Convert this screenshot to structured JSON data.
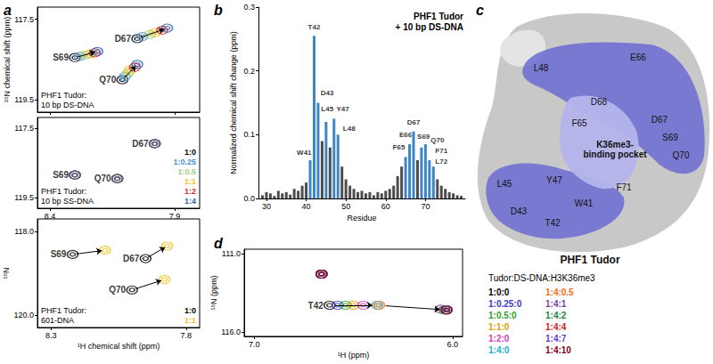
{
  "panel_labels": [
    "a",
    "b",
    "c",
    "d"
  ],
  "chart_data": [
    {
      "type": "scatter",
      "title": "PHF1 Tudor:\n10 bp DS-DNA",
      "xlim": [
        8.45,
        7.8
      ],
      "xticks": [
        8.4,
        7.9
      ],
      "ylim": [
        119.8,
        117.2
      ],
      "yticks": [
        117.5,
        119.5
      ],
      "y_label": "¹⁵N chemical shift (ppm)",
      "tick_labels": "y",
      "peaks": [
        "S69",
        "D67",
        "Q70"
      ],
      "series": [
        {
          "color": "#000000",
          "x": [
            8.3,
            8.05,
            8.11
          ],
          "y": [
            118.45,
            117.98,
            119.0
          ]
        },
        {
          "color": "#4a90d9",
          "x": [
            8.28,
            8.03,
            8.1
          ],
          "y": [
            118.42,
            117.93,
            118.92
          ]
        },
        {
          "color": "#9bd07f",
          "x": [
            8.26,
            8.0,
            8.09
          ],
          "y": [
            118.39,
            117.88,
            118.85
          ]
        },
        {
          "color": "#f2c21b",
          "x": [
            8.24,
            7.98,
            8.08
          ],
          "y": [
            118.36,
            117.83,
            118.77
          ]
        },
        {
          "color": "#d62828",
          "x": [
            8.22,
            7.95,
            8.06
          ],
          "y": [
            118.33,
            117.77,
            118.69
          ]
        },
        {
          "color": "#2b5fb4",
          "x": [
            8.21,
            7.93,
            8.05
          ],
          "y": [
            118.3,
            117.72,
            118.62
          ]
        }
      ]
    },
    {
      "type": "scatter",
      "title": "PHF1 Tudor:\n10 bp SS-DNA",
      "xlim": [
        8.45,
        7.8
      ],
      "xticks": [
        8.4,
        7.9
      ],
      "ylim": [
        119.8,
        117.2
      ],
      "yticks": [
        117.5,
        119.5
      ],
      "legend": "lower right",
      "peaks": [
        "S69",
        "D67",
        "Q70"
      ],
      "series": [
        {
          "name": "1:0",
          "color": "#000000",
          "x": [
            8.3,
            7.98,
            8.13
          ],
          "y": [
            118.85,
            117.95,
            118.95
          ]
        },
        {
          "name": "1:0.25",
          "color": "#4a90d9",
          "x": [
            8.3,
            7.98,
            8.13
          ],
          "y": [
            118.85,
            117.95,
            118.95
          ]
        },
        {
          "name": "1:0.5",
          "color": "#9bd07f",
          "x": [
            8.3,
            7.98,
            8.13
          ],
          "y": [
            118.85,
            117.95,
            118.95
          ]
        },
        {
          "name": "1:1",
          "color": "#f2c21b",
          "x": [
            8.3,
            7.98,
            8.13
          ],
          "y": [
            118.85,
            117.95,
            118.95
          ]
        },
        {
          "name": "1:2",
          "color": "#d62828",
          "x": [
            8.3,
            7.98,
            8.13
          ],
          "y": [
            118.85,
            117.95,
            118.95
          ]
        },
        {
          "name": "1:4",
          "color": "#2b5fb4",
          "x": [
            8.3,
            7.98,
            8.13
          ],
          "y": [
            118.85,
            117.95,
            118.95
          ]
        }
      ]
    },
    {
      "type": "scatter",
      "title": "PHF1 Tudor:\n601-DNA",
      "xlim": [
        8.35,
        7.75
      ],
      "xticks": [
        8.3,
        7.8
      ],
      "ylim": [
        120.3,
        117.7
      ],
      "yticks": [
        {
          "value": 118,
          "label": "118.0"
        },
        {
          "value": 120,
          "label": "120.0"
        }
      ],
      "x_label": "¹H chemical shift (ppm)",
      "y_label": "¹⁵N",
      "legend": "lower right",
      "peaks": [
        "S69",
        "D67",
        "Q70"
      ],
      "series": [
        {
          "name": "1:0",
          "color": "#000000",
          "x": [
            8.22,
            7.95,
            8.0
          ],
          "y": [
            118.55,
            118.65,
            119.4
          ]
        },
        {
          "name": "1:1",
          "color": "#f2c21b",
          "x": [
            8.1,
            7.87,
            7.88
          ],
          "y": [
            118.45,
            118.35,
            119.15
          ]
        }
      ]
    },
    {
      "type": "bar",
      "title": "PHF1 Tudor\n+ 10 bp DS-DNA",
      "x_label": "Residue",
      "y_label": "Normalized chemical shift change (ppm)",
      "xlim": [
        28,
        80
      ],
      "xticks": [
        30,
        40,
        50,
        60,
        70
      ],
      "ylim": [
        0,
        0.3
      ],
      "yticks": [
        {
          "value": 0,
          "label": "0.0"
        },
        0.1,
        0.2,
        0.3
      ],
      "grid": false,
      "x": [
        29,
        30,
        31,
        32,
        33,
        34,
        35,
        36,
        37,
        38,
        39,
        40,
        41,
        42,
        43,
        44,
        45,
        46,
        47,
        48,
        49,
        50,
        51,
        52,
        53,
        54,
        55,
        56,
        57,
        58,
        59,
        60,
        61,
        62,
        63,
        64,
        65,
        66,
        67,
        68,
        69,
        70,
        71,
        72,
        73,
        74,
        75,
        76,
        77,
        78,
        79
      ],
      "values": [
        0.005,
        0.01,
        0.008,
        0.004,
        0.012,
        0.008,
        0.01,
        0.006,
        0.015,
        0.012,
        0.02,
        0.025,
        0.06,
        0.255,
        0.15,
        0.09,
        0.12,
        0.08,
        0.125,
        0.1,
        0.05,
        0.03,
        0.02,
        0.015,
        0.01,
        0.012,
        0.008,
        0.01,
        0.005,
        0.01,
        0.008,
        0.012,
        0.015,
        0.02,
        0.035,
        0.05,
        0.065,
        0.085,
        0.105,
        0.06,
        0.08,
        0.085,
        0.06,
        0.05,
        0.03,
        0.02,
        0.015,
        0.01,
        0.008,
        0.005,
        0.004
      ],
      "colors": [
        "#4d4d4d",
        "#4d4d4d",
        "#4d4d4d",
        "#4d4d4d",
        "#4d4d4d",
        "#4d4d4d",
        "#4d4d4d",
        "#4d4d4d",
        "#4d4d4d",
        "#4d4d4d",
        "#4d4d4d",
        "#4d4d4d",
        "#3d85c6",
        "#3d85c6",
        "#3d85c6",
        "#4d4d4d",
        "#3d85c6",
        "#4d4d4d",
        "#3d85c6",
        "#3d85c6",
        "#4d4d4d",
        "#4d4d4d",
        "#4d4d4d",
        "#4d4d4d",
        "#4d4d4d",
        "#4d4d4d",
        "#4d4d4d",
        "#4d4d4d",
        "#4d4d4d",
        "#4d4d4d",
        "#4d4d4d",
        "#4d4d4d",
        "#4d4d4d",
        "#4d4d4d",
        "#4d4d4d",
        "#4d4d4d",
        "#3d85c6",
        "#3d85c6",
        "#3d85c6",
        "#4d4d4d",
        "#3d85c6",
        "#3d85c6",
        "#3d85c6",
        "#3d85c6",
        "#4d4d4d",
        "#4d4d4d",
        "#4d4d4d",
        "#4d4d4d",
        "#4d4d4d",
        "#4d4d4d",
        "#4d4d4d"
      ],
      "annotations": [
        {
          "text": "W41",
          "x": 39.5,
          "y": 0.072
        },
        {
          "text": "T42",
          "x": 42,
          "y": 0.268
        },
        {
          "text": "D43",
          "x": 45.3,
          "y": 0.165
        },
        {
          "text": "L45",
          "x": 45.3,
          "y": 0.14
        },
        {
          "text": "Y47",
          "x": 49.2,
          "y": 0.14
        },
        {
          "text": "L48",
          "x": 50.8,
          "y": 0.11
        },
        {
          "text": "F65",
          "x": 63.3,
          "y": 0.08
        },
        {
          "text": "E66",
          "x": 65,
          "y": 0.1
        },
        {
          "text": "D67",
          "x": 67,
          "y": 0.12
        },
        {
          "text": "S69",
          "x": 69.5,
          "y": 0.097
        },
        {
          "text": "Q70",
          "x": 73,
          "y": 0.092
        },
        {
          "text": "F71",
          "x": 74,
          "y": 0.075
        },
        {
          "text": "L72",
          "x": 74,
          "y": 0.058
        }
      ]
    },
    {
      "type": "scatter",
      "title": "Tudor:DS-DNA:H3K36me3",
      "xlim": [
        7.05,
        5.95
      ],
      "xticks": [
        {
          "value": 7,
          "label": "7.0"
        },
        {
          "value": 6,
          "label": "6.0"
        }
      ],
      "ylim": [
        116.3,
        110.7
      ],
      "yticks": [
        {
          "value": 111,
          "label": "111.0"
        },
        {
          "value": 116,
          "label": "116.0"
        }
      ],
      "x_label": "¹H (ppm)",
      "y_label": "¹⁵N (ppm)",
      "legend": "right",
      "peaks": [
        "T42",
        null
      ],
      "series": [
        {
          "name": "1:0:0",
          "color": "#000000",
          "x": [
            6.62,
            6.66
          ],
          "y": [
            114.3,
            112.3
          ]
        },
        {
          "name": "1:0.25:0",
          "color": "#3a3ac8",
          "x": [
            6.58,
            6.66
          ],
          "y": [
            114.3,
            112.3
          ]
        },
        {
          "name": "1:0.5:0",
          "color": "#2ca02c",
          "x": [
            6.54,
            6.66
          ],
          "y": [
            114.3,
            112.3
          ]
        },
        {
          "name": "1:1:0",
          "color": "#e0a000",
          "x": [
            6.5,
            6.66
          ],
          "y": [
            114.3,
            112.3
          ]
        },
        {
          "name": "1:2:0",
          "color": "#d040c0",
          "x": [
            6.45,
            6.66
          ],
          "y": [
            114.3,
            112.3
          ]
        },
        {
          "name": "1:4:0",
          "color": "#20b0c8",
          "x": [
            6.38,
            6.66
          ],
          "y": [
            114.3,
            112.3
          ]
        },
        {
          "name": "1:4:0.5",
          "color": "#f07020",
          "x": [
            6.37,
            6.66
          ],
          "y": [
            114.3,
            112.3
          ]
        },
        {
          "name": "1:4:1",
          "color": "#8040a0",
          "x": [
            6.06,
            6.66
          ],
          "y": [
            114.55,
            112.3
          ]
        },
        {
          "name": "1:4:2",
          "color": "#208040",
          "x": [
            6.04,
            6.66
          ],
          "y": [
            114.6,
            112.3
          ]
        },
        {
          "name": "1:4:4",
          "color": "#d02020",
          "x": [
            6.03,
            6.66
          ],
          "y": [
            114.6,
            112.3
          ]
        },
        {
          "name": "1:4:7",
          "color": "#6040d0",
          "x": [
            6.03,
            6.66
          ],
          "y": [
            114.6,
            112.3
          ]
        },
        {
          "name": "1:4:10",
          "color": "#800020",
          "x": [
            6.03,
            6.66
          ],
          "y": [
            114.6,
            112.3
          ]
        }
      ]
    }
  ],
  "structure": {
    "title": "PHF1 Tudor",
    "pocket_label": "K36me3-\nbinding pocket",
    "residues": [
      "L48",
      "E66",
      "D68",
      "F65",
      "D67",
      "S69",
      "Q70",
      "L45",
      "Y47",
      "F71",
      "W41",
      "T42",
      "D43"
    ]
  }
}
